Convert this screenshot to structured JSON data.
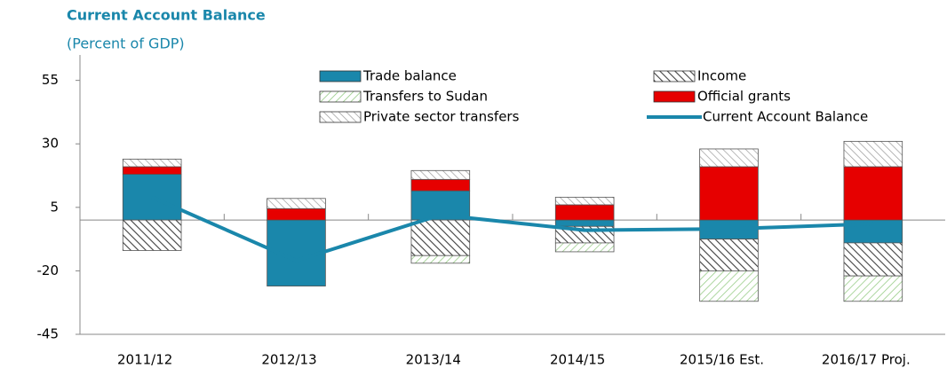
{
  "chart_data": {
    "type": "bar",
    "title": "Current Account Balance",
    "subtitle": "(Percent of GDP)",
    "categories": [
      "2011/12",
      "2012/13",
      "2013/14",
      "2014/15",
      "2015/16 Est.",
      "2016/17 Proj."
    ],
    "stacked": true,
    "series": [
      {
        "name": "Trade balance",
        "type": "bar",
        "color": "#1a87ab",
        "values": [
          18,
          -26,
          11.5,
          -2.5,
          -7.5,
          -9
        ]
      },
      {
        "name": "Income",
        "type": "bar",
        "color": "#404040",
        "hatch": true,
        "values": [
          -12,
          0,
          -14,
          -6.5,
          -12.5,
          -13
        ]
      },
      {
        "name": "Transfers to Sudan",
        "type": "bar",
        "color": "#8cc77a",
        "hatch": true,
        "values": [
          0,
          0,
          -3,
          -3.5,
          -12,
          -10
        ]
      },
      {
        "name": "Official grants",
        "type": "bar",
        "color": "#e60000",
        "values": [
          3,
          4.5,
          4.5,
          6,
          21,
          21
        ]
      },
      {
        "name": "Private sector transfers",
        "type": "bar",
        "color": "#9a9a9a",
        "hatch": true,
        "values": [
          3,
          4,
          3.5,
          3,
          7,
          10
        ]
      },
      {
        "name": "Current Account Balance",
        "type": "line",
        "color": "#1a87ab",
        "values": [
          9,
          -16,
          2,
          -4,
          -3.5,
          -1.5
        ]
      }
    ],
    "ylim": [
      -45,
      65
    ],
    "yticks": [
      -45,
      -20,
      5,
      30,
      55
    ],
    "grid": false
  }
}
